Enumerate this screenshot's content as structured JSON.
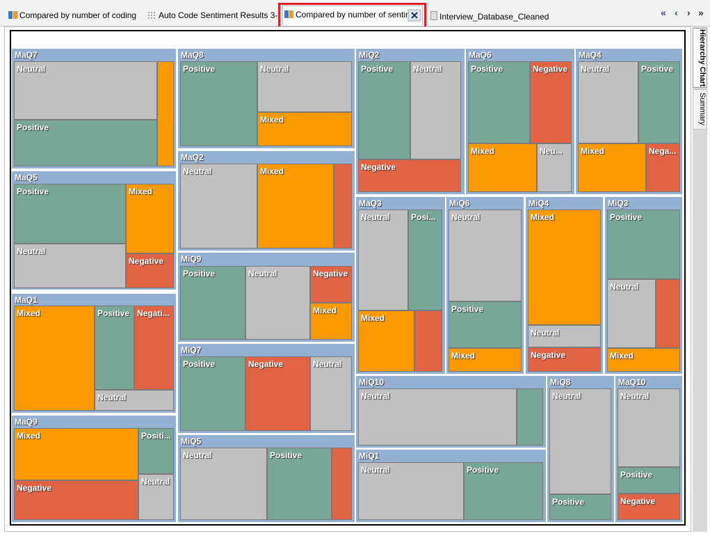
{
  "tabs": [
    "Compared by number of coding",
    "Auto Code Sentiment Results 3-",
    "Compared by number of sentime",
    "Interview_Database_Cleaned"
  ],
  "nav": [
    "«",
    "‹",
    "›",
    "»"
  ],
  "side_tabs": [
    "Hierarchy Chart",
    "Summary"
  ],
  "treemap": {
    "groups": [
      {
        "name": "MaQ7",
        "cells": [
          {
            "label": "Neutral",
            "color": "#c0c0c0"
          },
          {
            "label": "Positive",
            "color": "#78a797"
          },
          {
            "label": null,
            "color": "#fa9a00"
          }
        ]
      },
      {
        "name": "MaQ5",
        "cells": [
          {
            "label": "Positive",
            "color": "#78a797"
          },
          {
            "label": "Mixed",
            "color": "#fa9a00"
          },
          {
            "label": "Neutral",
            "color": "#c0c0c0"
          },
          {
            "label": "Negative",
            "color": "#e06343"
          }
        ]
      },
      {
        "name": "MaQ1",
        "cells": [
          {
            "label": "Mixed",
            "color": "#fa9a00"
          },
          {
            "label": "Positive",
            "color": "#78a797"
          },
          {
            "label": "Negati...",
            "color": "#e06343"
          },
          {
            "label": "Neutral",
            "color": "#c0c0c0"
          }
        ]
      },
      {
        "name": "MaQ9",
        "cells": [
          {
            "label": "Mixed",
            "color": "#fa9a00"
          },
          {
            "label": "Positi...",
            "color": "#78a797"
          },
          {
            "label": "Neutral",
            "color": "#c0c0c0"
          },
          {
            "label": "Negative",
            "color": "#e06343"
          }
        ]
      },
      {
        "name": "MaQ8",
        "cells": [
          {
            "label": "Positive",
            "color": "#78a797"
          },
          {
            "label": "Neutral",
            "color": "#c0c0c0"
          },
          {
            "label": "Mixed",
            "color": "#fa9a00"
          }
        ]
      },
      {
        "name": "MaQ2",
        "cells": [
          {
            "label": "Neutral",
            "color": "#c0c0c0"
          },
          {
            "label": "Mixed",
            "color": "#fa9a00"
          },
          {
            "label": null,
            "color": "#e06343"
          }
        ]
      },
      {
        "name": "MiQ9",
        "cells": [
          {
            "label": "Positive",
            "color": "#78a797"
          },
          {
            "label": "Neutral",
            "color": "#c0c0c0"
          },
          {
            "label": "Negative",
            "color": "#e06343"
          },
          {
            "label": "Mixed",
            "color": "#fa9a00"
          }
        ]
      },
      {
        "name": "MiQ7",
        "cells": [
          {
            "label": "Positive",
            "color": "#78a797"
          },
          {
            "label": "Negative",
            "color": "#e06343"
          },
          {
            "label": "Neutral",
            "color": "#c0c0c0"
          }
        ]
      },
      {
        "name": "MiQ5",
        "cells": [
          {
            "label": "Neutral",
            "color": "#c0c0c0"
          },
          {
            "label": "Positive",
            "color": "#78a797"
          },
          {
            "label": null,
            "color": "#e06343"
          }
        ]
      },
      {
        "name": "MiQ2",
        "cells": [
          {
            "label": "Positive",
            "color": "#78a797"
          },
          {
            "label": "Neutral",
            "color": "#c0c0c0"
          },
          {
            "label": "Negative",
            "color": "#e06343"
          }
        ]
      },
      {
        "name": "MaQ6",
        "cells": [
          {
            "label": "Positive",
            "color": "#78a797"
          },
          {
            "label": "Negative",
            "color": "#e06343"
          },
          {
            "label": "Mixed",
            "color": "#fa9a00"
          },
          {
            "label": "Neu...",
            "color": "#c0c0c0"
          }
        ]
      },
      {
        "name": "MaQ4",
        "cells": [
          {
            "label": "Neutral",
            "color": "#c0c0c0"
          },
          {
            "label": "Positive",
            "color": "#78a797"
          },
          {
            "label": "Mixed",
            "color": "#fa9a00"
          },
          {
            "label": "Nega...",
            "color": "#e06343"
          }
        ]
      },
      {
        "name": "MaQ3",
        "cells": [
          {
            "label": "Neutral",
            "color": "#c0c0c0"
          },
          {
            "label": "Posi...",
            "color": "#78a797"
          },
          {
            "label": "Mixed",
            "color": "#fa9a00"
          },
          {
            "label": null,
            "color": "#e06343"
          }
        ]
      },
      {
        "name": "MiQ6",
        "cells": [
          {
            "label": "Neutral",
            "color": "#c0c0c0"
          },
          {
            "label": "Positive",
            "color": "#78a797"
          },
          {
            "label": "Mixed",
            "color": "#fa9a00"
          }
        ]
      },
      {
        "name": "MiQ4",
        "cells": [
          {
            "label": "Mixed",
            "color": "#fa9a00"
          },
          {
            "label": "Neutral",
            "color": "#c0c0c0"
          },
          {
            "label": "Negative",
            "color": "#e06343"
          }
        ]
      },
      {
        "name": "MiQ3",
        "cells": [
          {
            "label": "Positive",
            "color": "#78a797"
          },
          {
            "label": "Neutral",
            "color": "#c0c0c0"
          },
          {
            "label": null,
            "color": "#e06343"
          },
          {
            "label": "Mixed",
            "color": "#fa9a00"
          }
        ]
      },
      {
        "name": "MiQ10",
        "cells": [
          {
            "label": "Neutral",
            "color": "#c0c0c0"
          },
          {
            "label": null,
            "color": "#78a797"
          }
        ]
      },
      {
        "name": "MiQ1",
        "cells": [
          {
            "label": "Neutral",
            "color": "#c0c0c0"
          },
          {
            "label": "Positive",
            "color": "#78a797"
          }
        ]
      },
      {
        "name": "MiQ8",
        "cells": [
          {
            "label": "Neutral",
            "color": "#c0c0c0"
          },
          {
            "label": "Positive",
            "color": "#78a797"
          }
        ]
      },
      {
        "name": "MaQ10",
        "cells": [
          {
            "label": "Neutral",
            "color": "#c0c0c0"
          },
          {
            "label": "Positive",
            "color": "#78a797"
          },
          {
            "label": "Negative",
            "color": "#e06343"
          }
        ]
      }
    ]
  }
}
